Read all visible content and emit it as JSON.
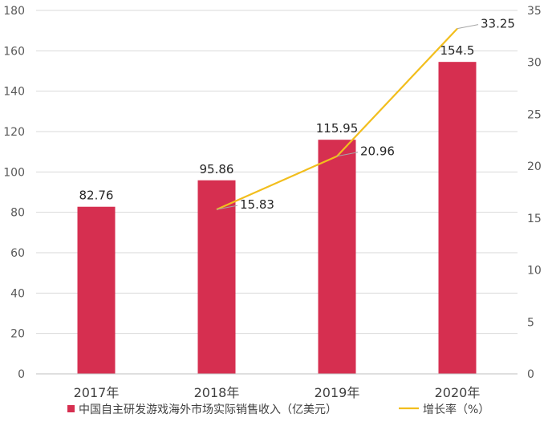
{
  "chart_data": {
    "type": "bar",
    "categories": [
      "2017年",
      "2018年",
      "2019年",
      "2020年"
    ],
    "series": [
      {
        "name": "中国自主研发游戏海外市场实际销售收入（亿美元）",
        "type": "bar",
        "axis": "left",
        "color": "#D62F50",
        "values": [
          82.76,
          95.86,
          115.95,
          154.5
        ],
        "labels": [
          "82.76",
          "95.86",
          "115.95",
          "154.5"
        ]
      },
      {
        "name": "增长率（%）",
        "type": "line",
        "axis": "right",
        "color": "#F2BE1D",
        "values": [
          null,
          15.83,
          20.96,
          33.25
        ],
        "labels": [
          "",
          "15.83",
          "20.96",
          "33.25"
        ]
      }
    ],
    "y_left": {
      "ylim": [
        0,
        180
      ],
      "ticks": [
        0,
        20,
        40,
        60,
        80,
        100,
        120,
        140,
        160,
        180
      ]
    },
    "y_right": {
      "ylim": [
        0,
        35
      ],
      "ticks": [
        0,
        5,
        10,
        15,
        20,
        25,
        30,
        35
      ]
    },
    "grid": true,
    "legend": "bottom",
    "title": "",
    "xlabel": "",
    "ylabel": ""
  }
}
